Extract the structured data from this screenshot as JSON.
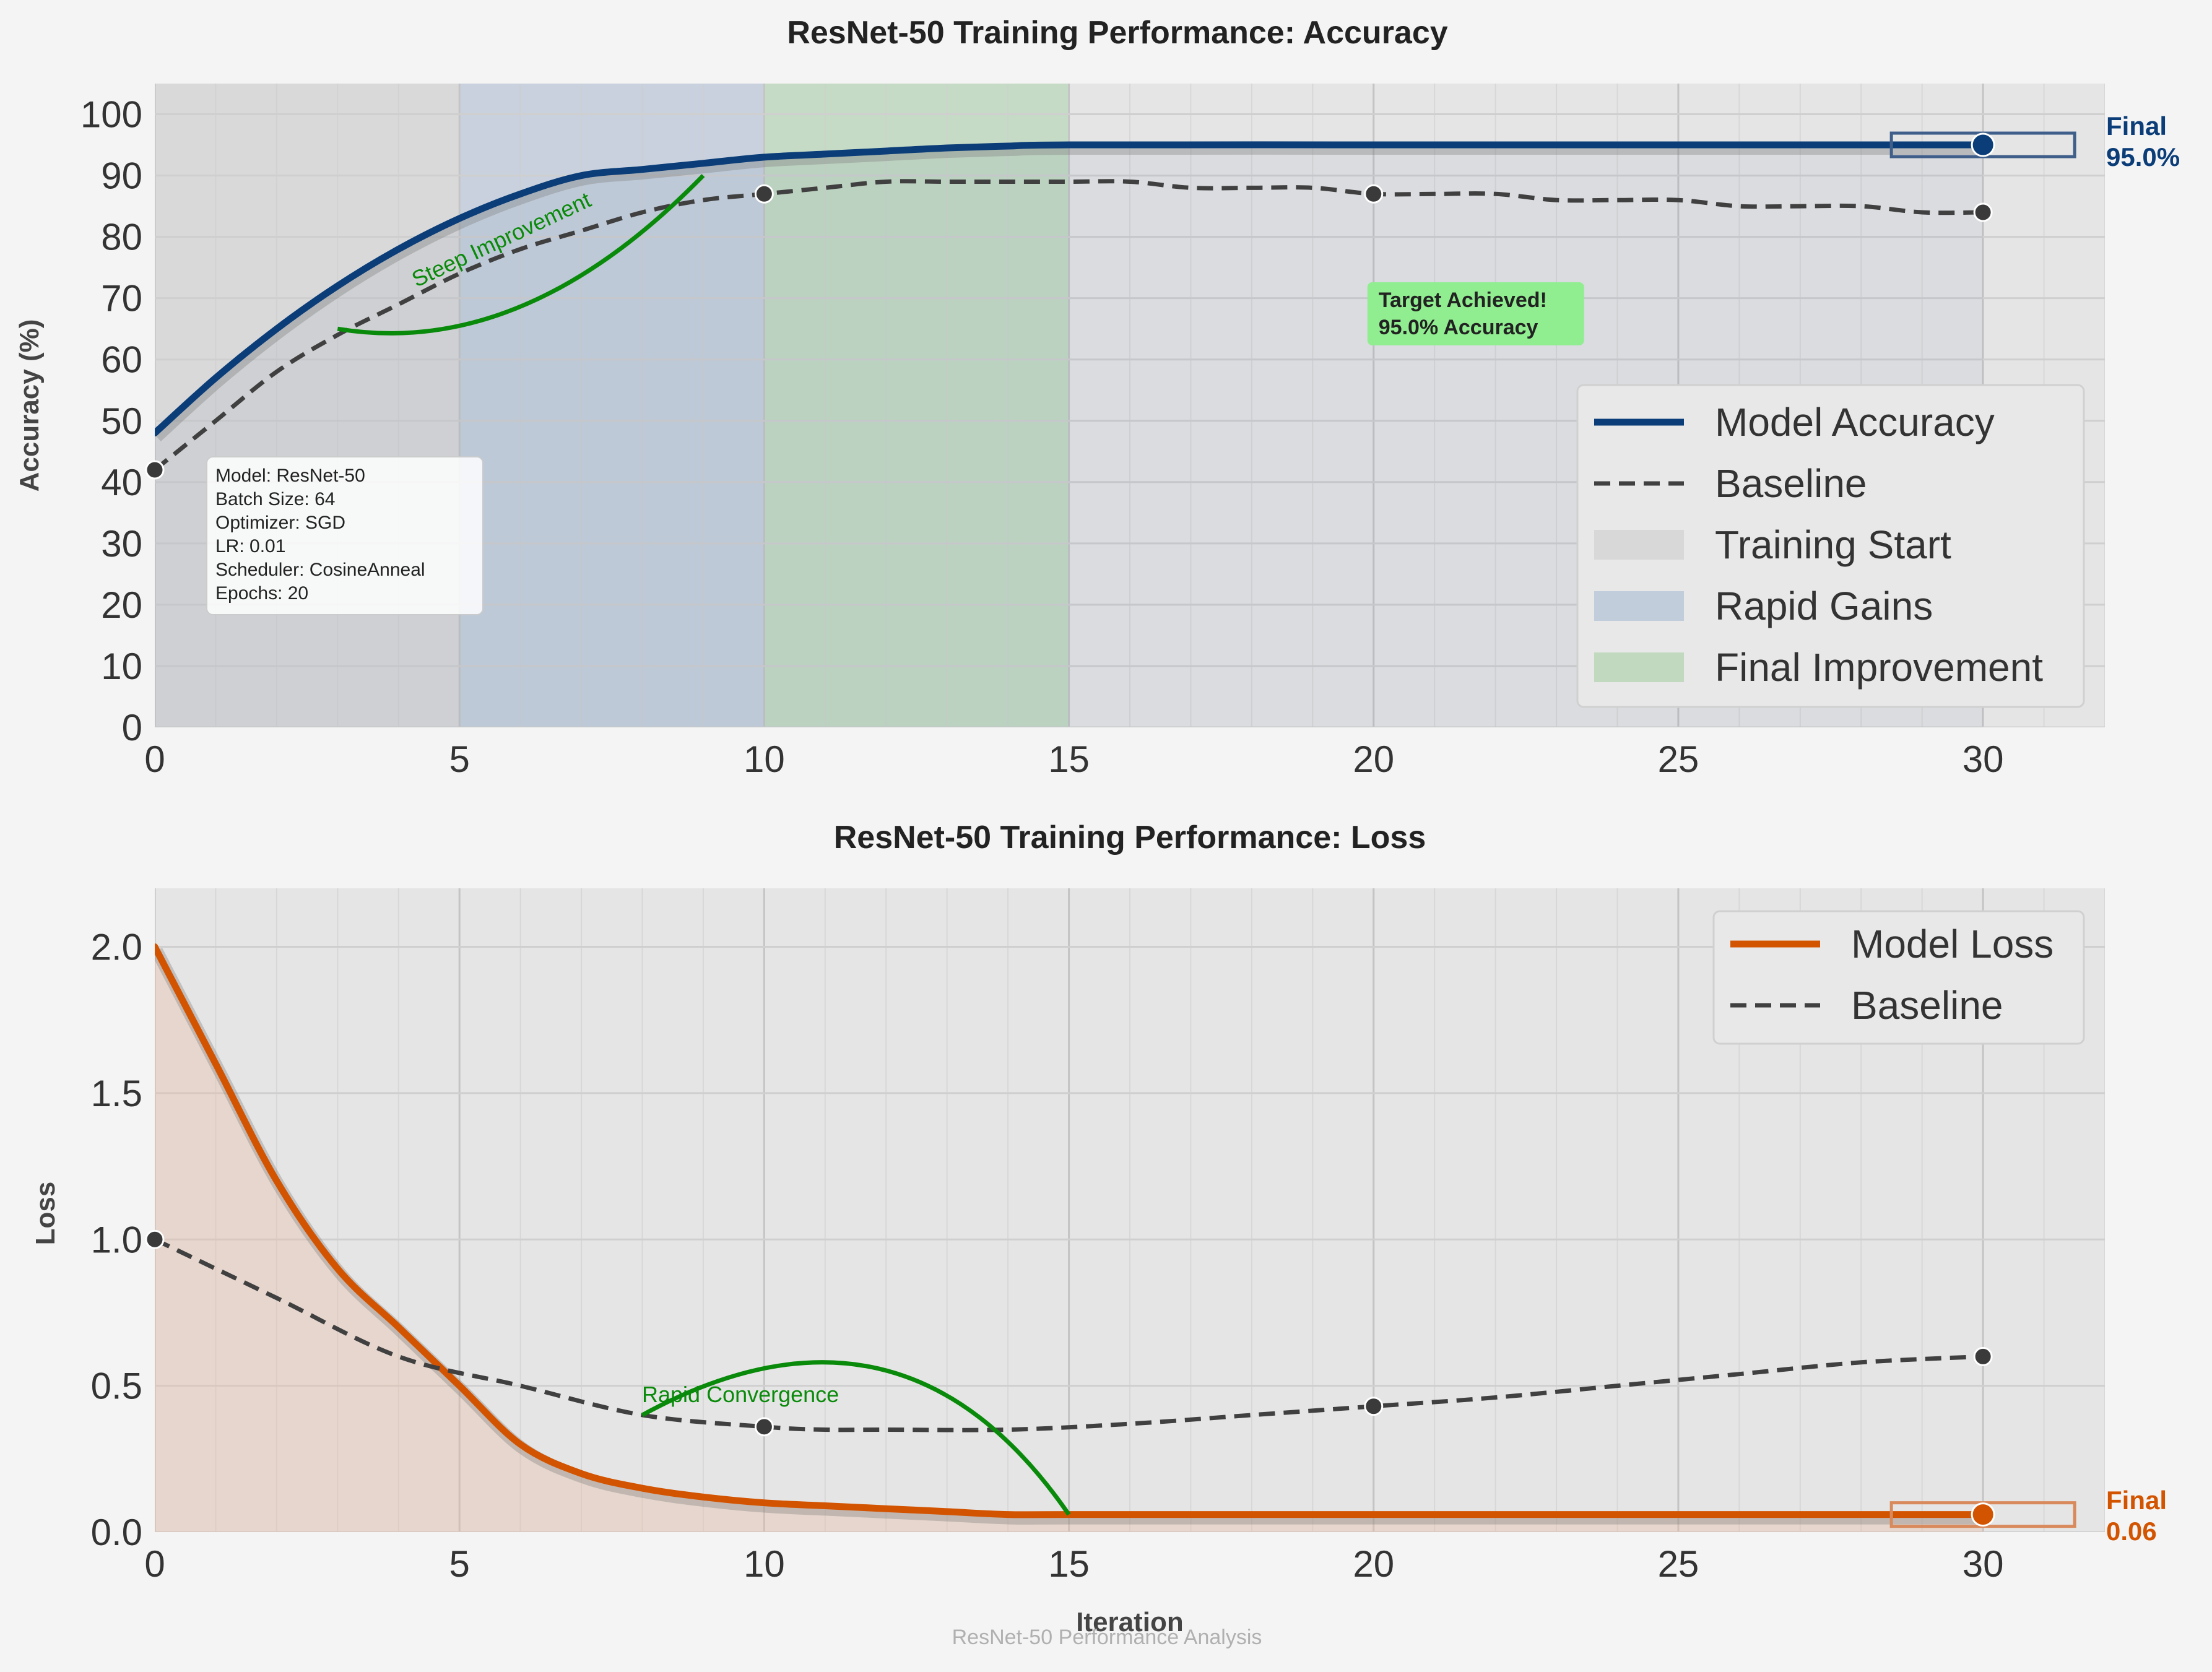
{
  "chart_data": [
    {
      "type": "line",
      "title": "ResNet-50 Training Performance: Accuracy",
      "xlabel": "",
      "ylabel": "Accuracy (%)",
      "xlim": [
        0,
        32
      ],
      "ylim": [
        0,
        105
      ],
      "xticks": [
        0,
        5,
        10,
        15,
        20,
        25,
        30
      ],
      "yticks": [
        0,
        10,
        20,
        30,
        40,
        50,
        60,
        70,
        80,
        90,
        100
      ],
      "grid": true,
      "legend_position": "lower-right",
      "series": [
        {
          "name": "Model Accuracy",
          "color": "#0b3d78",
          "style": "solid",
          "x": [
            0,
            1,
            2,
            3,
            4,
            5,
            6,
            7,
            8,
            9,
            10,
            11,
            12,
            13,
            14,
            15,
            20,
            25,
            30
          ],
          "values": [
            48,
            57,
            65,
            72,
            78,
            83,
            87,
            90,
            91,
            92,
            93,
            93.5,
            94,
            94.5,
            94.8,
            95,
            95,
            95,
            95
          ]
        },
        {
          "name": "Baseline",
          "color": "#404040",
          "style": "dashed",
          "x": [
            0,
            1,
            2,
            3,
            4,
            5,
            6,
            7,
            8,
            9,
            10,
            11,
            12,
            13,
            14,
            15,
            16,
            17,
            18,
            19,
            20,
            21,
            22,
            23,
            24,
            25,
            26,
            27,
            28,
            29,
            30
          ],
          "values": [
            42,
            50,
            58,
            64,
            69,
            74,
            78,
            81,
            84,
            86,
            87,
            88,
            89,
            89,
            89,
            89,
            89,
            88,
            88,
            88,
            87,
            87,
            87,
            86,
            86,
            86,
            85,
            85,
            85,
            84,
            84
          ],
          "markers_at": [
            0,
            10,
            20,
            30
          ]
        }
      ],
      "regions": [
        {
          "name": "Training Start",
          "x": [
            0,
            5
          ],
          "color": "#d3d3d3"
        },
        {
          "name": "Rapid Gains",
          "x": [
            5,
            10
          ],
          "color": "#b8c6d8"
        },
        {
          "name": "Final Improvement",
          "x": [
            10,
            15
          ],
          "color": "#b6d6b4"
        }
      ],
      "annotations": [
        {
          "text": "Steep Improvement",
          "color": "#0a8a0a",
          "arrow_from": [
            3,
            65
          ],
          "arrow_to": [
            9,
            90
          ]
        },
        {
          "text_lines": [
            "Target Achieved!",
            "95.0% Accuracy"
          ],
          "at": [
            20,
            62
          ],
          "bg": "#90ee90"
        },
        {
          "text_lines": [
            "Final",
            "95.0%"
          ],
          "at": [
            30,
            95
          ]
        }
      ],
      "info_box": [
        "Model: ResNet-50",
        "Batch Size: 64",
        "Optimizer: SGD",
        "LR: 0.01",
        "Scheduler: CosineAnneal",
        "Epochs: 20"
      ]
    },
    {
      "type": "line",
      "title": "ResNet-50 Training Performance: Loss",
      "xlabel": "Iteration",
      "ylabel": "Loss",
      "xlim": [
        0,
        32
      ],
      "ylim": [
        0,
        2.2
      ],
      "xticks": [
        0,
        5,
        10,
        15,
        20,
        25,
        30
      ],
      "yticks": [
        0.0,
        0.5,
        1.0,
        1.5,
        2.0
      ],
      "grid": true,
      "legend_position": "upper-right",
      "series": [
        {
          "name": "Model Loss",
          "color": "#d35400",
          "style": "solid",
          "x": [
            0,
            1,
            2,
            3,
            4,
            5,
            6,
            7,
            8,
            9,
            10,
            11,
            12,
            13,
            14,
            15,
            20,
            25,
            30
          ],
          "values": [
            2.0,
            1.6,
            1.2,
            0.9,
            0.7,
            0.5,
            0.3,
            0.2,
            0.15,
            0.12,
            0.1,
            0.09,
            0.08,
            0.07,
            0.06,
            0.06,
            0.06,
            0.06,
            0.06
          ]
        },
        {
          "name": "Baseline",
          "color": "#404040",
          "style": "dashed",
          "x": [
            0,
            2,
            4,
            6,
            8,
            10,
            11,
            12,
            14,
            16,
            18,
            20,
            22,
            24,
            26,
            28,
            30
          ],
          "values": [
            1.0,
            0.8,
            0.6,
            0.5,
            0.4,
            0.36,
            0.35,
            0.35,
            0.35,
            0.37,
            0.4,
            0.43,
            0.46,
            0.5,
            0.54,
            0.58,
            0.6
          ],
          "markers_at": [
            0,
            10,
            20,
            30
          ]
        }
      ],
      "annotations": [
        {
          "text": "Rapid Convergence",
          "color": "#0a8a0a",
          "arrow_from": [
            8,
            0.4
          ],
          "arrow_to": [
            15,
            0.06
          ]
        },
        {
          "text_lines": [
            "Final",
            "0.06"
          ],
          "at": [
            30,
            0.06
          ]
        }
      ]
    }
  ],
  "footer": "ResNet-50 Performance Analysis"
}
